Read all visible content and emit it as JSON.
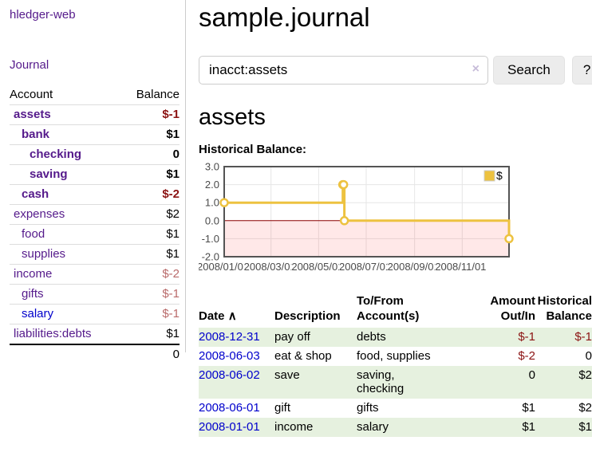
{
  "sidebar": {
    "brand": "hledger-web",
    "journal_label": "Journal",
    "accounts": {
      "header_account": "Account",
      "header_balance": "Balance",
      "rows": [
        {
          "name": "assets",
          "depth": 1,
          "bold": true,
          "balance": "$-1",
          "neg": "strong"
        },
        {
          "name": "bank",
          "depth": 2,
          "bold": true,
          "balance": "$1",
          "neg": "none"
        },
        {
          "name": "checking",
          "depth": 3,
          "bold": true,
          "balance": "0",
          "neg": "none"
        },
        {
          "name": "saving",
          "depth": 3,
          "bold": true,
          "balance": "$1",
          "neg": "none"
        },
        {
          "name": "cash",
          "depth": 2,
          "bold": true,
          "balance": "$-2",
          "neg": "strong"
        },
        {
          "name": "expenses",
          "depth": 1,
          "bold": false,
          "balance": "$2",
          "neg": "none"
        },
        {
          "name": "food",
          "depth": 2,
          "bold": false,
          "balance": "$1",
          "neg": "none"
        },
        {
          "name": "supplies",
          "depth": 2,
          "bold": false,
          "balance": "$1",
          "neg": "none"
        },
        {
          "name": "income",
          "depth": 1,
          "bold": false,
          "balance": "$-2",
          "neg": "soft"
        },
        {
          "name": "gifts",
          "depth": 2,
          "bold": false,
          "balance": "$-1",
          "neg": "soft"
        },
        {
          "name": "salary",
          "depth": 2,
          "bold": false,
          "balance": "$-1",
          "neg": "soft",
          "blue": true
        },
        {
          "name": "liabilities:debts",
          "depth": 1,
          "bold": false,
          "balance": "$1",
          "neg": "none"
        }
      ],
      "total": "0"
    }
  },
  "main": {
    "title": "sample.journal",
    "search": {
      "value": "inacct:assets",
      "clear_icon": "×",
      "search_label": "Search",
      "help_label": "?"
    },
    "account_heading": "assets"
  },
  "chart_data": {
    "type": "line",
    "title": "Historical Balance:",
    "interpolation": "step-after",
    "series": [
      {
        "name": "$",
        "color": "#edc240",
        "points": [
          [
            "2008-01-01",
            1
          ],
          [
            "2008-06-01",
            2
          ],
          [
            "2008-06-02",
            2
          ],
          [
            "2008-06-03",
            0
          ],
          [
            "2008-12-31",
            -1
          ]
        ]
      }
    ],
    "xlim": [
      "2008-01-01",
      "2008-12-31"
    ],
    "ylim": [
      -2,
      3
    ],
    "x_ticks": [
      "2008/01/01",
      "2008/03/01",
      "2008/05/01",
      "2008/07/01",
      "2008/09/01",
      "2008/11/01"
    ],
    "y_ticks": [
      3.0,
      2.0,
      1.0,
      0.0,
      -1.0,
      -2.0
    ],
    "grid": true,
    "legend_position": "top-right",
    "grid_color": "#e6e6e6",
    "border_color": "#545454",
    "tick_color": "#4a4a4a",
    "negative_region_color": "rgba(255,0,0,0.09)",
    "zero_line_color": "#8b0000"
  },
  "register": {
    "headers": {
      "date": "Date",
      "sort_icon": "∧",
      "description": "Description",
      "accounts": "To/From Account(s)",
      "amount": "Amount Out/In",
      "balance": "Historical Balance"
    },
    "rows": [
      {
        "date": "2008-12-31",
        "description": "pay off",
        "accounts": [
          "debts"
        ],
        "amount": "$-1",
        "amount_negative": true,
        "balance": "$-1",
        "balance_negative": true
      },
      {
        "date": "2008-06-03",
        "description": "eat & shop",
        "accounts": [
          "food",
          "supplies"
        ],
        "amount": "$-2",
        "amount_negative": true,
        "balance": "0",
        "balance_negative": false
      },
      {
        "date": "2008-06-02",
        "description": "save",
        "accounts": [
          "saving",
          "checking"
        ],
        "amount": "0",
        "amount_negative": false,
        "balance": "$2",
        "balance_negative": false
      },
      {
        "date": "2008-06-01",
        "description": "gift",
        "accounts": [
          "gifts"
        ],
        "amount": "$1",
        "amount_negative": false,
        "balance": "$2",
        "balance_negative": false
      },
      {
        "date": "2008-01-01",
        "description": "income",
        "accounts": [
          "salary"
        ],
        "amount": "$1",
        "amount_negative": false,
        "balance": "$1",
        "balance_negative": false
      }
    ]
  },
  "colors": {
    "link_purple": "#551a8b",
    "link_blue": "#0000cc",
    "negative_strong": "#8b1212",
    "negative_soft": "#b96a6a",
    "row_stripe_green": "#e6f1df",
    "series_yellow": "#edc240",
    "chart_border": "#545454",
    "chart_grid": "#e6e6e6",
    "negative_region": "rgba(255,0,0,0.09)",
    "zero_line": "#8b0000"
  }
}
